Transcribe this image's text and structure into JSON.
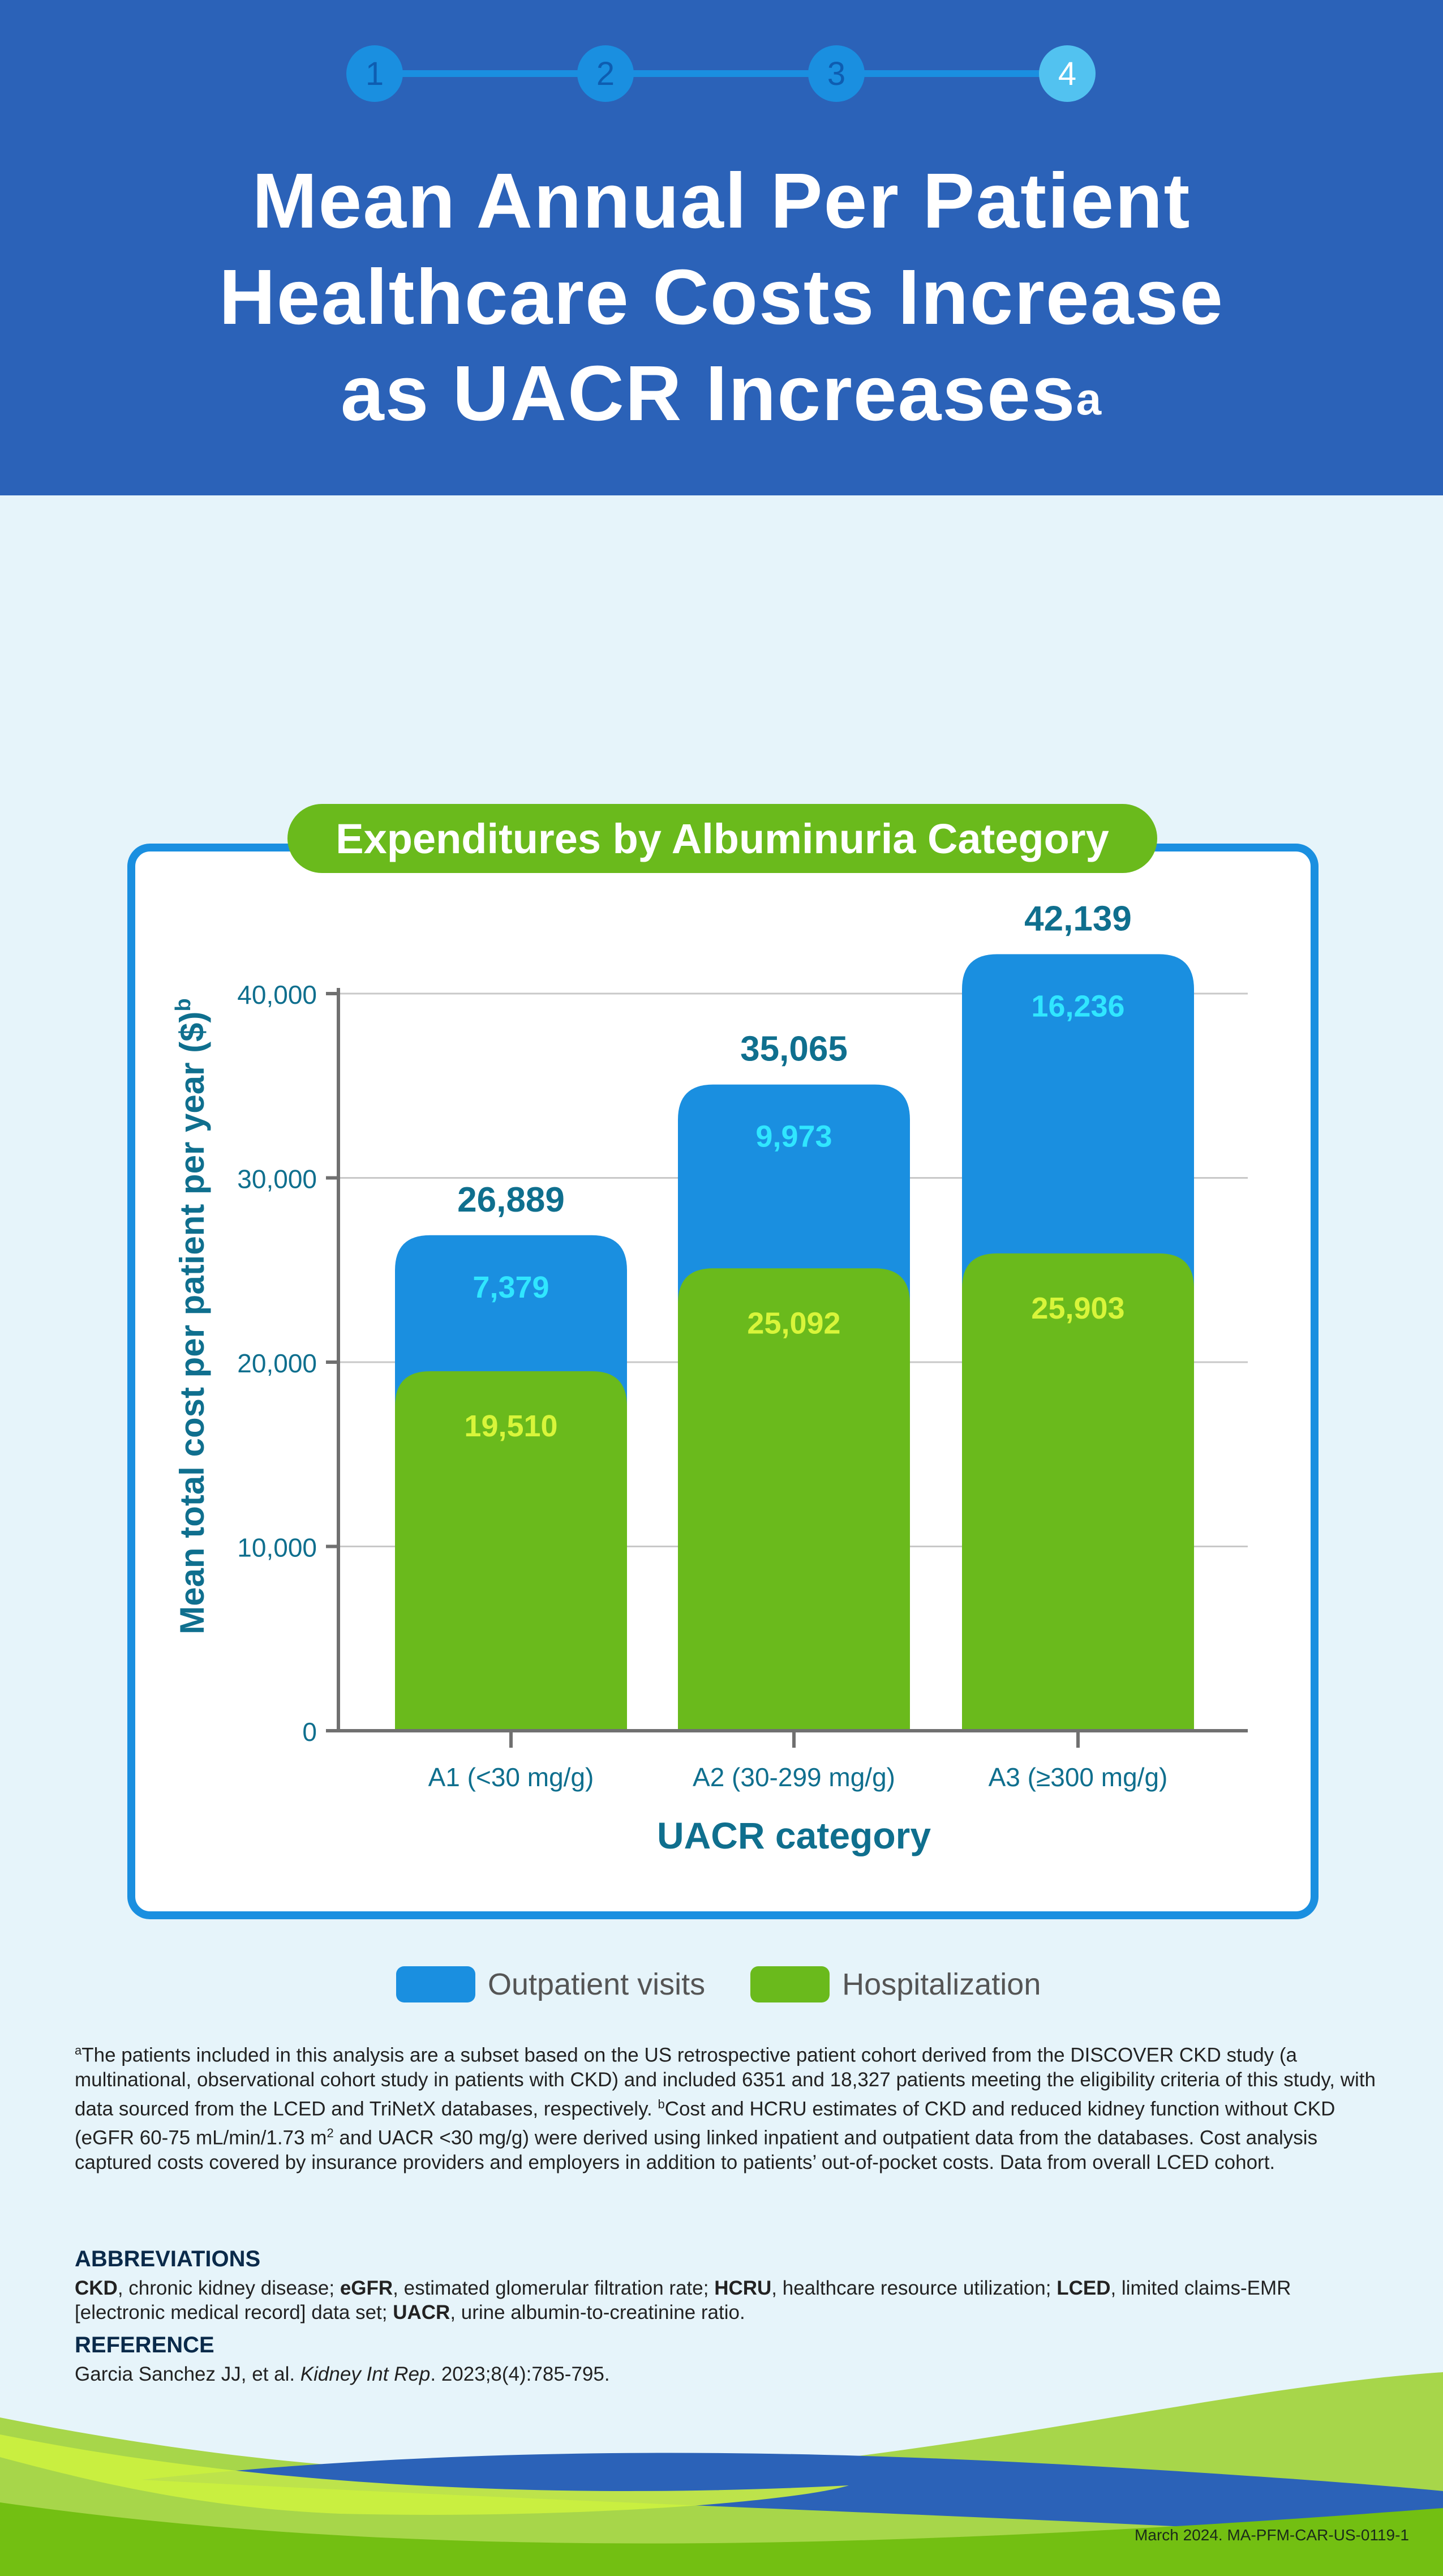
{
  "steps": [
    "1",
    "2",
    "3",
    "4"
  ],
  "active_step": 3,
  "title": {
    "line1": "Mean Annual Per Patient",
    "line2": "Healthcare Costs Increase",
    "line3": "as UACR Increases",
    "sup": "a"
  },
  "colors": {
    "header": "#2b62b8",
    "outpatient": "#1a8fe0",
    "hospitalization": "#6aba1c",
    "total_label": "#0f6f8e",
    "outpatient_label": "#30e6ff",
    "hospitalization_label": "#d8f53a",
    "axis_text": "#0f6f8e"
  },
  "chart_data": {
    "type": "bar",
    "stacked": true,
    "title": "Expenditures by Albuminuria Category",
    "ylabel": "Mean total cost per patient per year ($)",
    "ylabel_sup": "b",
    "xlabel": "UACR category",
    "categories": [
      "A1 (<30 mg/g)",
      "A2 (30-299 mg/g)",
      "A3 (≥300 mg/g)"
    ],
    "series": [
      {
        "name": "Hospitalization",
        "values": [
          19510,
          25092,
          25903
        ],
        "labels": [
          "19,510",
          "25,092",
          "25,903"
        ]
      },
      {
        "name": "Outpatient visits",
        "values": [
          7379,
          9973,
          16236
        ],
        "labels": [
          "7,379",
          "9,973",
          "16,236"
        ]
      }
    ],
    "totals": [
      26889,
      35065,
      42139
    ],
    "total_labels": [
      "26,889",
      "35,065",
      "42,139"
    ],
    "ylim": [
      0,
      40000
    ],
    "yticks": [
      0,
      10000,
      20000,
      30000,
      40000
    ],
    "ytick_labels": [
      "0",
      "10,000",
      "20,000",
      "30,000",
      "40,000"
    ],
    "grid": true,
    "legend": "bottom"
  },
  "legend": [
    {
      "name": "Outpatient visits"
    },
    {
      "name": "Hospitalization"
    }
  ],
  "footnote": {
    "sup_a": "a",
    "text_a": "The patients included in this analysis are a subset based on the US retrospective patient cohort derived from the DISCOVER CKD study (a multinational, observational cohort study in patients with CKD) and included 6351 and 18,327 patients meeting the eligibility criteria of this study, with data sourced from the LCED and TriNetX databases, respectively.",
    "sup_b": "b",
    "text_b1": "Cost and HCRU estimates of CKD and reduced kidney function without CKD (eGFR 60-75 mL/min/1.73 m",
    "sup_2": "2",
    "text_b2": " and UACR <30 mg/g) were derived using linked inpatient and outpatient data from the databases. Cost analysis captured costs covered by insurance providers and employers in addition to patients’ out-of-pocket costs. Data from overall LCED cohort."
  },
  "abbreviations": {
    "heading": "ABBREVIATIONS",
    "items": [
      {
        "term": "CKD",
        "def": ", chronic kidney disease; "
      },
      {
        "term": "eGFR",
        "def": ", estimated glomerular filtration rate; "
      },
      {
        "term": "HCRU",
        "def": ", healthcare resource utilization; "
      },
      {
        "term": "LCED",
        "def": ", limited claims-EMR [electronic medical record] data set; "
      },
      {
        "term": "UACR",
        "def": ", urine albumin-to-creatinine ratio."
      }
    ]
  },
  "reference": {
    "heading": "REFERENCE",
    "authors": "Garcia Sanchez JJ, et al. ",
    "journal": "Kidney Int Rep",
    "citation": ". 2023;8(4):785-795."
  },
  "document_code": "March 2024. MA-PFM-CAR-US-0119-1"
}
